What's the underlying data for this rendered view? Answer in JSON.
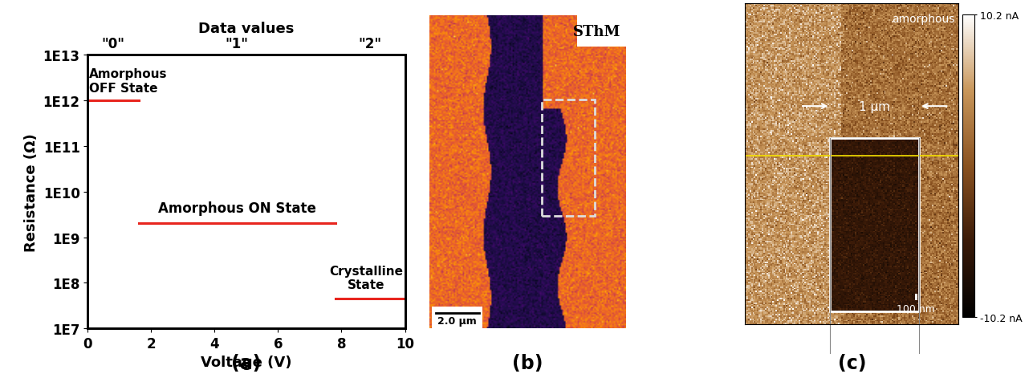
{
  "chart_data": {
    "type": "line",
    "panel_label": "(a)",
    "x_label": "Voltage (V)",
    "y_label": "Resistance (Ω)",
    "x2_label": "Data values",
    "log": "y",
    "xlim": [
      0,
      10
    ],
    "xticks": [
      0,
      2,
      4,
      6,
      8,
      10
    ],
    "ylim": [
      10000000,
      10000000000000
    ],
    "yticks": [
      {
        "value": 10000000,
        "label": "1E7"
      },
      {
        "value": 100000000,
        "label": "1E8"
      },
      {
        "value": 1000000000,
        "label": "1E9"
      },
      {
        "value": 10000000000,
        "label": "1E10"
      },
      {
        "value": 100000000000,
        "label": "1E11"
      },
      {
        "value": 1000000000000,
        "label": "1E12"
      },
      {
        "value": 10000000000000,
        "label": "1E13"
      }
    ],
    "color": "#e8261f",
    "series": [
      {
        "label": "Amorphous\nOFF State",
        "data_value": "\"0\"",
        "x": [
          0,
          1.6
        ],
        "values": [
          1000000000000,
          1000000000000
        ]
      },
      {
        "label": "Amorphous ON State",
        "data_value": "\"1\"",
        "x": [
          1.6,
          7.8
        ],
        "values": [
          2000000000,
          2000000000
        ]
      },
      {
        "label": "Crystalline\nState",
        "data_value": "\"2\"",
        "x": [
          7.8,
          10
        ],
        "values": [
          45000000,
          45000000
        ]
      }
    ]
  },
  "panels": {
    "b": {
      "panel_label": "(b)",
      "text": "SThM",
      "scale_bar": "2.0 μm"
    },
    "c": {
      "panel_label": "(c)",
      "text": "amorphous",
      "width_label": "1 μm",
      "scale_bar": "100 nm",
      "colorbar": {
        "range": [
          -10.2,
          10.2
        ],
        "ticks": [
          {
            "value": -10.2,
            "label": "-10.2 nA"
          },
          {
            "value": 10.2,
            "label": "10.2 nA"
          }
        ]
      }
    }
  }
}
